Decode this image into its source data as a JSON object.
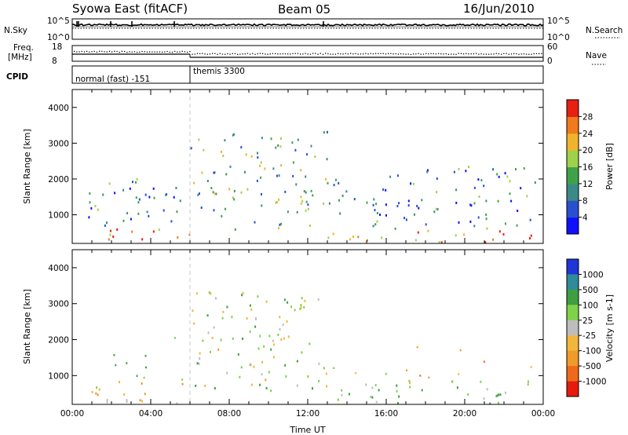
{
  "header": {
    "station": "Syowa East (fitACF)",
    "beam": "Beam 05",
    "date": "16/Jun/2010"
  },
  "noise_panel": {
    "left_label": "N.Sky",
    "right_label": "N.Search",
    "left_ticks": [
      "10^5",
      "10^0"
    ],
    "right_ticks": [
      "10^5",
      "10^0"
    ]
  },
  "freq_panel": {
    "left_label_1": "Freq.",
    "left_label_2": "[MHz]",
    "left_ticks": [
      "18",
      "8"
    ],
    "right_label": "Nave",
    "right_ticks": [
      "60",
      "0"
    ],
    "freq_before_mhz": 12.5,
    "freq_after_mhz": 10.5,
    "nave_before": 38,
    "nave_after": 30
  },
  "cpid_panel": {
    "label": "CPID",
    "modes": [
      {
        "name": "normal (fast) -151",
        "start_hour": 0,
        "end_hour": 6
      },
      {
        "name": "themis 3300",
        "start_hour": 6,
        "end_hour": 24
      }
    ]
  },
  "chart_data": [
    {
      "type": "heatmap",
      "title": "Power",
      "ylabel": "Slant Range [km]",
      "xlabel": "",
      "xlim": [
        0,
        24
      ],
      "ylim": [
        200,
        4500
      ],
      "y_ticks": [
        1000,
        2000,
        3000,
        4000
      ],
      "colorbar": {
        "label": "Power [dB]",
        "ticks": [
          "4",
          "8",
          "12",
          "16",
          "20",
          "24",
          "28"
        ],
        "range": [
          0,
          30
        ],
        "colors": [
          "#1010ff",
          "#2a4fd0",
          "#3c8a86",
          "#3fa24b",
          "#9ed24a",
          "#f0b42c",
          "#f07a1c",
          "#e62012"
        ]
      },
      "scatter_regions": [
        {
          "t0": 0.8,
          "t1": 6.0,
          "r0": 220,
          "r1": 700,
          "power_db": 24
        },
        {
          "t0": 0.8,
          "t1": 6.0,
          "r0": 700,
          "r1": 2200,
          "power_db": 10
        },
        {
          "t0": 6.0,
          "t1": 13.0,
          "r0": 600,
          "r1": 3400,
          "power_db": 14
        },
        {
          "t0": 13.0,
          "t1": 17.0,
          "r0": 220,
          "r1": 700,
          "power_db": 22
        },
        {
          "t0": 13.0,
          "t1": 17.0,
          "r0": 700,
          "r1": 2200,
          "power_db": 8
        },
        {
          "t0": 17.0,
          "t1": 23.8,
          "r0": 220,
          "r1": 700,
          "power_db": 26
        },
        {
          "t0": 17.0,
          "t1": 23.8,
          "r0": 700,
          "r1": 2400,
          "power_db": 9
        }
      ]
    },
    {
      "type": "heatmap",
      "title": "Velocity",
      "ylabel": "Slant Range [km]",
      "xlabel": "Time UT",
      "xlim": [
        0,
        24
      ],
      "ylim": [
        200,
        4500
      ],
      "x_ticks": [
        "00:00",
        "04:00",
        "08:00",
        "12:00",
        "16:00",
        "20:00",
        "00:00"
      ],
      "y_ticks": [
        1000,
        2000,
        3000,
        4000
      ],
      "colorbar": {
        "label": "Velocity [m s-1]",
        "ticks": [
          "1000",
          "500",
          "100",
          "25",
          "-25",
          "-100",
          "-500",
          "-1000"
        ],
        "colors": [
          "#2035d8",
          "#2f8a9a",
          "#3f9e42",
          "#7fd24a",
          "#bdbdbd",
          "#f3b63c",
          "#f09a2a",
          "#ee6a1a",
          "#e61a0e"
        ]
      },
      "scatter_regions": [
        {
          "t0": 0.8,
          "t1": 6.0,
          "r0": 220,
          "r1": 900,
          "velocity": -100
        },
        {
          "t0": 0.8,
          "t1": 6.0,
          "r0": 900,
          "r1": 2200,
          "velocity": 100
        },
        {
          "t0": 6.0,
          "t1": 13.0,
          "r0": 600,
          "r1": 3400,
          "velocity": 25
        },
        {
          "t0": 13.0,
          "t1": 23.8,
          "r0": 220,
          "r1": 900,
          "velocity": 100
        },
        {
          "t0": 13.0,
          "t1": 23.8,
          "r0": 900,
          "r1": 1300,
          "velocity": -25
        },
        {
          "t0": 17.0,
          "t1": 21.0,
          "r0": 1000,
          "r1": 2000,
          "velocity": -500
        }
      ]
    }
  ]
}
